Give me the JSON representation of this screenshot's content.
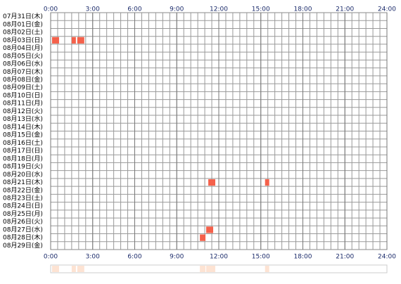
{
  "chart_data": {
    "type": "timeline",
    "categories": [
      "07月31日(木)",
      "08月01日(金)",
      "08月02日(土)",
      "08月03日(日)",
      "08月04日(月)",
      "08月05日(火)",
      "08月06日(水)",
      "08月07日(木)",
      "08月08日(金)",
      "08月09日(土)",
      "08月10日(日)",
      "08月11日(月)",
      "08月12日(火)",
      "08月13日(水)",
      "08月14日(木)",
      "08月15日(金)",
      "08月16日(土)",
      "08月17日(日)",
      "08月18日(月)",
      "08月19日(火)",
      "08月20日(水)",
      "08月21日(木)",
      "08月22日(金)",
      "08月23日(土)",
      "08月24日(日)",
      "08月25日(月)",
      "08月26日(火)",
      "08月27日(水)",
      "08月28日(木)",
      "08月29日(金)"
    ],
    "values": [
      [],
      [],
      [],
      [
        [
          0.1,
          0.6
        ],
        [
          1.5,
          1.8
        ],
        [
          1.9,
          2.4
        ]
      ],
      [],
      [],
      [],
      [],
      [],
      [],
      [],
      [],
      [],
      [],
      [],
      [],
      [],
      [],
      [],
      [],
      [],
      [
        [
          11.25,
          11.75
        ],
        [
          15.3,
          15.6
        ]
      ],
      [],
      [],
      [],
      [],
      [],
      [
        [
          11.1,
          11.6
        ]
      ],
      [
        [
          10.65,
          11.05
        ]
      ],
      []
    ],
    "color": "#f4614b",
    "summary_color": "#fde3d3",
    "xlim": [
      0,
      24
    ],
    "xticks": [
      {
        "value": 0,
        "label": "0:00"
      },
      {
        "value": 3,
        "label": "3:00"
      },
      {
        "value": 6,
        "label": "6:00"
      },
      {
        "value": 9,
        "label": "9:00"
      },
      {
        "value": 12,
        "label": "12:00"
      },
      {
        "value": 15,
        "label": "15:00"
      },
      {
        "value": 18,
        "label": "18:00"
      },
      {
        "value": 21,
        "label": "21:00"
      },
      {
        "value": 24,
        "label": "24:00"
      }
    ],
    "grid": true
  }
}
